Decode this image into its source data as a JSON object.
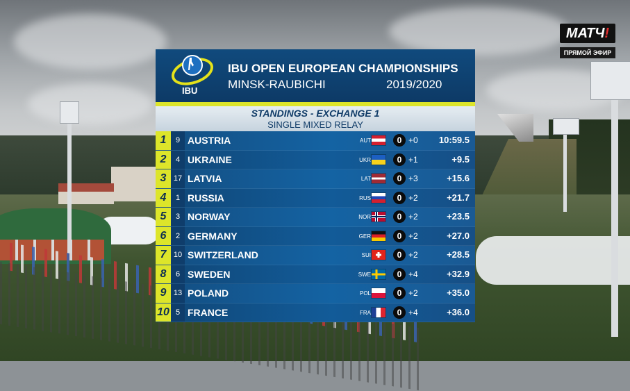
{
  "broadcaster": {
    "logo_text": "МАТЧ",
    "logo_mark": "!",
    "live_label": "ПРЯМОЙ ЭФИР"
  },
  "board": {
    "org": "IBU",
    "title_line1": "IBU OPEN EUROPEAN CHAMPIONSHIPS",
    "title_line2": "MINSK-RAUBICHI",
    "season": "2019/2020",
    "standings_title": "STANDINGS - EXCHANGE 1",
    "event": "SINGLE MIXED RELAY",
    "colors": {
      "accent": "#dde52a",
      "panel": "#134d80",
      "header": "#0d3a66"
    },
    "rows": [
      {
        "rank": "1",
        "bib": "9",
        "nation": "AUSTRIA",
        "code": "AUT",
        "flag": "flag-austria-icon",
        "penalty": "0",
        "spare": "+0",
        "time": "10:59.5"
      },
      {
        "rank": "2",
        "bib": "4",
        "nation": "UKRAINE",
        "code": "UKR",
        "flag": "flag-ukraine-icon",
        "penalty": "0",
        "spare": "+1",
        "time": "+9.5"
      },
      {
        "rank": "3",
        "bib": "17",
        "nation": "LATVIA",
        "code": "LAT",
        "flag": "flag-latvia-icon",
        "penalty": "0",
        "spare": "+3",
        "time": "+15.6"
      },
      {
        "rank": "4",
        "bib": "1",
        "nation": "RUSSIA",
        "code": "RUS",
        "flag": "flag-russia-icon",
        "penalty": "0",
        "spare": "+2",
        "time": "+21.7"
      },
      {
        "rank": "5",
        "bib": "3",
        "nation": "NORWAY",
        "code": "NOR",
        "flag": "flag-norway-icon",
        "penalty": "0",
        "spare": "+2",
        "time": "+23.5"
      },
      {
        "rank": "6",
        "bib": "2",
        "nation": "GERMANY",
        "code": "GER",
        "flag": "flag-germany-icon",
        "penalty": "0",
        "spare": "+2",
        "time": "+27.0"
      },
      {
        "rank": "7",
        "bib": "10",
        "nation": "SWITZERLAND",
        "code": "SUI",
        "flag": "flag-switzerland-icon",
        "penalty": "0",
        "spare": "+2",
        "time": "+28.5"
      },
      {
        "rank": "8",
        "bib": "6",
        "nation": "SWEDEN",
        "code": "SWE",
        "flag": "flag-sweden-icon",
        "penalty": "0",
        "spare": "+4",
        "time": "+32.9"
      },
      {
        "rank": "9",
        "bib": "13",
        "nation": "POLAND",
        "code": "POL",
        "flag": "flag-poland-icon",
        "penalty": "0",
        "spare": "+2",
        "time": "+35.0"
      },
      {
        "rank": "10",
        "bib": "5",
        "nation": "FRANCE",
        "code": "FRA",
        "flag": "flag-france-icon",
        "penalty": "0",
        "spare": "+4",
        "time": "+36.0"
      }
    ]
  }
}
